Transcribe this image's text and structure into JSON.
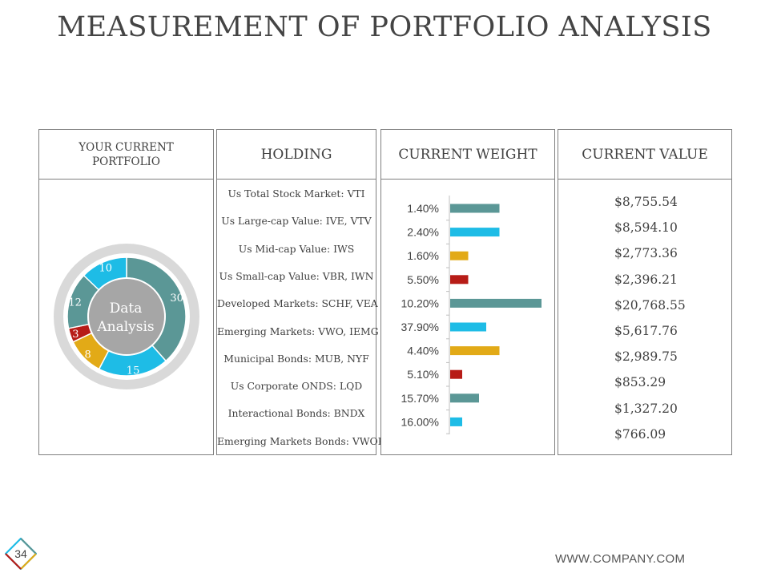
{
  "title": "MEASUREMENT OF PORTFOLIO ANALYSIS",
  "columns": {
    "portfolio": "YOUR CURRENT PORTFOLIO",
    "portfolio_line1": "YOUR CURRENT",
    "portfolio_line2": "PORTFOLIO",
    "holding": "HOLDING",
    "weight": "CURRENT WEIGHT",
    "value": "CURRENT VALUE"
  },
  "donut": {
    "center_line1": "Data",
    "center_line2": "Analysis",
    "segments": [
      {
        "label": "30",
        "value": 30,
        "color": "#5b9796"
      },
      {
        "label": "15",
        "value": 15,
        "color": "#1ebce6"
      },
      {
        "label": "8",
        "value": 8,
        "color": "#e2aa17"
      },
      {
        "label": "3",
        "value": 3,
        "color": "#b71c17"
      },
      {
        "label": "12",
        "value": 12,
        "color": "#5b9796"
      },
      {
        "label": "10",
        "value": 10,
        "color": "#1ebce6"
      }
    ],
    "outer_ring_color": "#d9d9d9",
    "center_color": "#a6a6a6"
  },
  "rows": [
    {
      "holding": "Us Total Stock Market: VTI",
      "weight": "1.40%",
      "value": "$8,755.54"
    },
    {
      "holding": "Us Large-cap Value: IVE, VTV",
      "weight": "2.40%",
      "value": "$8,594.10"
    },
    {
      "holding": "Us Mid-cap Value: IWS",
      "weight": "1.60%",
      "value": "$2,773.36"
    },
    {
      "holding": "Us Small-cap Value: VBR, IWN",
      "weight": "5.50%",
      "value": "$2,396.21"
    },
    {
      "holding": "Developed Markets: SCHF, VEA",
      "weight": "10.20%",
      "value": "$20,768.55"
    },
    {
      "holding": "Emerging Markets: VWO, IEMG",
      "weight": "37.90%",
      "value": "$5,617.76"
    },
    {
      "holding": "Municipal Bonds: MUB, NYF",
      "weight": "4.40%",
      "value": "$2,989.75"
    },
    {
      "holding": "Us Corporate ONDS: LQD",
      "weight": "5.10%",
      "value": "$853.29"
    },
    {
      "holding": "Interactional Bonds: BNDX",
      "weight": "15.70%",
      "value": "$1,327.20"
    },
    {
      "holding": "Emerging Markets Bonds: VWOB",
      "weight": "16.00%",
      "value": "$766.09"
    }
  ],
  "chart_data": {
    "type": "bar",
    "title": "CURRENT WEIGHT",
    "orientation": "horizontal",
    "categories": [
      "1.40%",
      "2.40%",
      "1.60%",
      "5.50%",
      "10.20%",
      "37.90%",
      "4.40%",
      "5.10%",
      "15.70%",
      "16.00%"
    ],
    "values": [
      4.1,
      4.1,
      1.5,
      1.5,
      7.6,
      3.0,
      4.1,
      1.0,
      2.4,
      1.0
    ],
    "colors": [
      "#5b9796",
      "#1ebce6",
      "#e2aa17",
      "#b71c17",
      "#5b9796",
      "#1ebce6",
      "#e2aa17",
      "#b71c17",
      "#5b9796",
      "#1ebce6"
    ],
    "xlim": [
      0,
      10
    ],
    "xlabel": "",
    "ylabel": ""
  },
  "footer": {
    "url": "WWW.COMPANY.COM",
    "page_number": "34"
  }
}
